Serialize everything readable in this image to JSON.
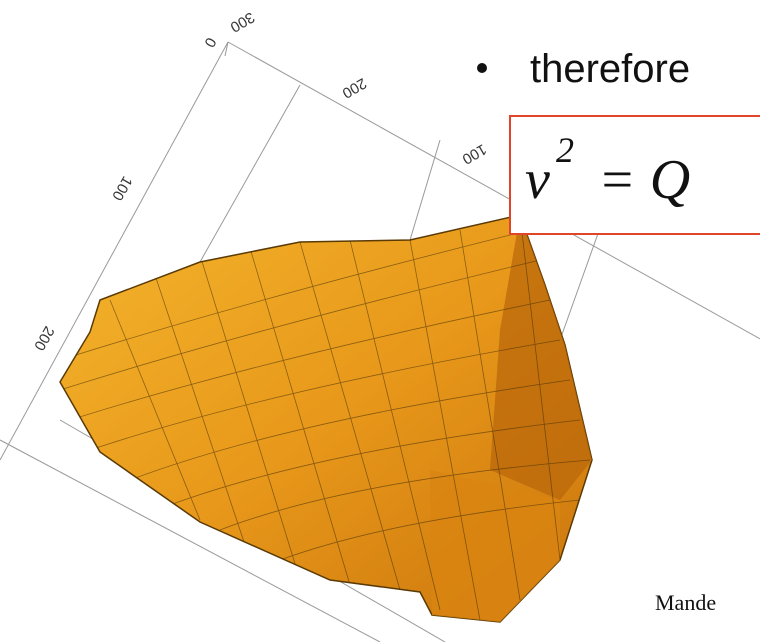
{
  "slide": {
    "bullet": "therefore",
    "equation": {
      "base": "v",
      "exponent": "2",
      "rhs": "= Q"
    },
    "citation": "Mande"
  },
  "plot": {
    "top_axis_ticks": [
      "300",
      "200",
      "100",
      "0"
    ],
    "left_axis_ticks": [
      "0",
      "100",
      "200"
    ]
  }
}
